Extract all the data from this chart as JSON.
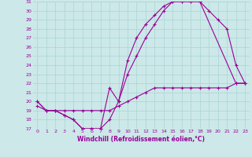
{
  "xlabel": "Windchill (Refroidissement éolien,°C)",
  "xlim": [
    -0.5,
    23.5
  ],
  "ylim": [
    17,
    31
  ],
  "xticks": [
    0,
    1,
    2,
    3,
    4,
    5,
    6,
    7,
    8,
    9,
    10,
    11,
    12,
    13,
    14,
    15,
    16,
    17,
    18,
    19,
    20,
    21,
    22,
    23
  ],
  "yticks": [
    17,
    18,
    19,
    20,
    21,
    22,
    23,
    24,
    25,
    26,
    27,
    28,
    29,
    30,
    31
  ],
  "bg_color": "#cce8e8",
  "grid_color": "#aad4d4",
  "line_color": "#990099",
  "curve1_x": [
    0,
    1,
    2,
    3,
    4,
    5,
    6,
    7,
    8,
    9,
    10,
    11,
    12,
    13,
    14,
    15,
    16,
    17,
    18,
    19,
    20,
    21,
    22,
    23
  ],
  "curve1_y": [
    20,
    19,
    19,
    18.5,
    18,
    17,
    17,
    17,
    18,
    20,
    23,
    25,
    27,
    28.5,
    30,
    31,
    31,
    31,
    31,
    30,
    29,
    28,
    24,
    22
  ],
  "curve2_x": [
    0,
    1,
    2,
    3,
    4,
    5,
    6,
    7,
    8,
    9,
    10,
    11,
    12,
    13,
    14,
    15,
    16,
    17,
    18,
    22,
    23
  ],
  "curve2_y": [
    20,
    19,
    19,
    18.5,
    18,
    17,
    17,
    17,
    21.5,
    20,
    24.5,
    27,
    28.5,
    29.5,
    30.5,
    31,
    31,
    31,
    31,
    22,
    22
  ],
  "curve3_x": [
    0,
    1,
    2,
    3,
    4,
    5,
    6,
    7,
    8,
    9,
    10,
    11,
    12,
    13,
    14,
    15,
    16,
    17,
    18,
    19,
    20,
    21,
    22,
    23
  ],
  "curve3_y": [
    19.5,
    19,
    19,
    19,
    19,
    19,
    19,
    19,
    19,
    19.5,
    20,
    20.5,
    21,
    21.5,
    21.5,
    21.5,
    21.5,
    21.5,
    21.5,
    21.5,
    21.5,
    21.5,
    22,
    22
  ],
  "marker": "+",
  "markersize": 3,
  "linewidth": 0.8
}
